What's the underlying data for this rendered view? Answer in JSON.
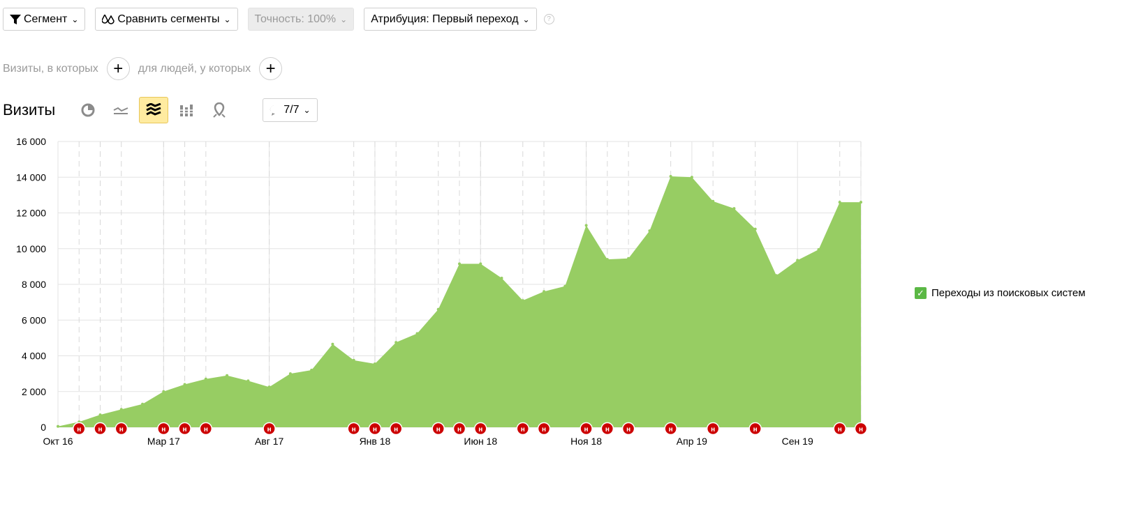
{
  "toolbar": {
    "segment": "Сегмент",
    "compare": "Сравнить сегменты",
    "precision": "Точность: 100%",
    "attribution": "Атрибуция: Первый переход",
    "help": "?"
  },
  "filters": {
    "visits_label": "Визиты, в которых",
    "people_label": "для людей, у которых"
  },
  "report": {
    "title": "Визиты",
    "count": "7/7"
  },
  "legend": {
    "label": "Переходы из поисковых систем",
    "color": "#97cd63"
  },
  "note_icon_label": "н",
  "note_color": "#cc0000",
  "chart_data": {
    "type": "area",
    "ylim": [
      0,
      16000
    ],
    "yticks": [
      "0",
      "2 000",
      "4 000",
      "6 000",
      "8 000",
      "10 000",
      "12 000",
      "14 000",
      "16 000"
    ],
    "xticks": [
      "Окт 16",
      "Мар 17",
      "Авг 17",
      "Янв 18",
      "Июн 18",
      "Ноя 18",
      "Апр 19",
      "Сен 19"
    ],
    "x": [
      "2016-10",
      "2016-11",
      "2016-12",
      "2017-01",
      "2017-02",
      "2017-03",
      "2017-04",
      "2017-05",
      "2017-06",
      "2017-07",
      "2017-08",
      "2017-09",
      "2017-10",
      "2017-11",
      "2017-12",
      "2018-01",
      "2018-02",
      "2018-03",
      "2018-04",
      "2018-05",
      "2018-06",
      "2018-07",
      "2018-08",
      "2018-09",
      "2018-10",
      "2018-11",
      "2018-12",
      "2019-01",
      "2019-02",
      "2019-03",
      "2019-04",
      "2019-05",
      "2019-06",
      "2019-07",
      "2019-08",
      "2019-09",
      "2019-10",
      "2019-11",
      "2019-12"
    ],
    "series": [
      {
        "name": "Переходы из поисковых систем",
        "values": [
          50,
          300,
          700,
          1000,
          1300,
          2000,
          2400,
          2700,
          2900,
          2600,
          2250,
          3000,
          3200,
          4650,
          3750,
          3550,
          4750,
          5250,
          6600,
          9150,
          9150,
          8350,
          7100,
          7600,
          7900,
          11300,
          9400,
          9450,
          11000,
          14050,
          14000,
          12650,
          12250,
          11100,
          8500,
          9350,
          9950,
          12600,
          12600
        ]
      }
    ],
    "annotation_months": [
      "2016-11",
      "2016-12",
      "2017-01",
      "2017-03",
      "2017-04",
      "2017-05",
      "2017-08",
      "2017-12",
      "2018-01",
      "2018-02",
      "2018-04",
      "2018-05",
      "2018-06",
      "2018-08",
      "2018-09",
      "2018-11",
      "2018-12",
      "2019-01",
      "2019-03",
      "2019-05",
      "2019-07",
      "2019-11",
      "2019-12"
    ]
  }
}
